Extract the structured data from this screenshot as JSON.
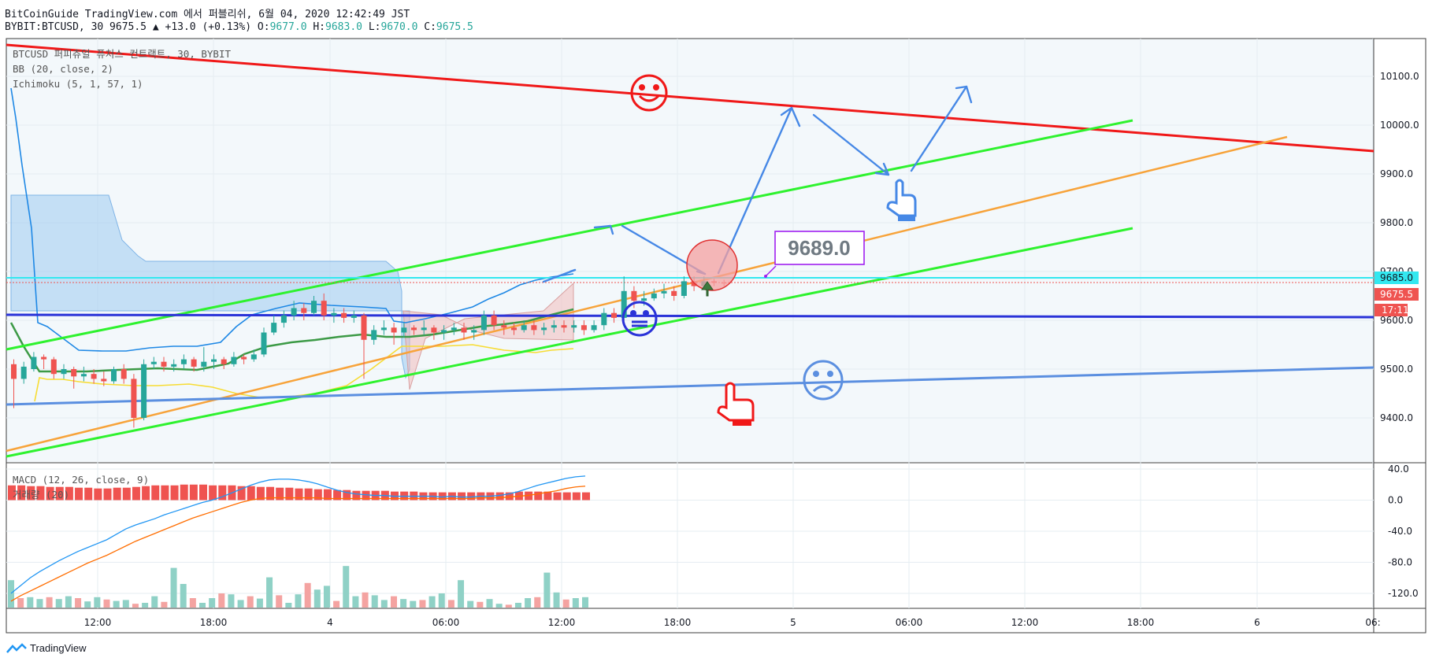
{
  "header": {
    "title": "BitCoinGuide TradingView.com 에서 퍼블리쉬, 6월 04, 2020 12:42:49 JST",
    "symbol_prefix": "BYBIT:BTCUSD, 30 9675.5",
    "change": "▲ +13.0 (+0.13%)",
    "o_label": "O:",
    "o_val": "9677.0",
    "h_label": "H:",
    "h_val": "9683.0",
    "l_label": "L:",
    "l_val": "9670.0",
    "c_label": "C:",
    "c_val": "9675.5"
  },
  "studies": {
    "main": "BTCUSD 퍼피츄얼 퓨처스 컨트랙트, 30, BYBIT",
    "bb": "BB (20, close, 2)",
    "ichimoku": "Ichimoku (5, 1, 57, 1)",
    "macd": "MACD (12, 26, close, 9)",
    "volume": "거래량 (20)"
  },
  "annotation": {
    "price_box": "9689.0"
  },
  "price_axis": {
    "ticks": [
      "10100.0",
      "10000.0",
      "9900.0",
      "9800.0",
      "9700.0",
      "9600.0",
      "9500.0",
      "9400.0"
    ],
    "badges": [
      {
        "text": "9685.0",
        "bg": "#33e8f0",
        "fg": "#131722"
      },
      {
        "text": "9675.5",
        "bg": "#ef5350",
        "fg": "#ffffff"
      },
      {
        "text": "17:11",
        "bg": "#ef5350",
        "fg": "#ffffff"
      }
    ]
  },
  "macd_axis": {
    "ticks": [
      "40.0",
      "0.0",
      "-40.0",
      "-80.0",
      "-120.0"
    ]
  },
  "time_axis": {
    "ticks": [
      "12:00",
      "18:00",
      "4",
      "06:00",
      "12:00",
      "18:00",
      "5",
      "06:00",
      "12:00",
      "18:00",
      "6",
      "06:"
    ]
  },
  "footer": {
    "logo": "TradingView"
  },
  "colors": {
    "up": "#26a69a",
    "down": "#ef5350",
    "resistance": "#f01818",
    "channel": "#2ef22e",
    "orange_trend": "#f7a33a",
    "blue_level": "#2a33d8",
    "support": "#5b8fe0",
    "arrows": "#4688e6",
    "annotation_border": "#a020f0"
  },
  "chart_data": {
    "type": "candlestick",
    "symbol": "BYBIT:BTCUSD",
    "interval": "30",
    "ylim": [
      9330,
      10170
    ],
    "last_price": 9675.5,
    "marked_price": 9689.0,
    "hline_price": 9685.0,
    "candles": [
      {
        "o": 9510,
        "c": 9480,
        "h": 9520,
        "l": 9420
      },
      {
        "o": 9480,
        "c": 9505,
        "h": 9515,
        "l": 9470
      },
      {
        "o": 9500,
        "c": 9525,
        "h": 9535,
        "l": 9495
      },
      {
        "o": 9525,
        "c": 9520,
        "h": 9530,
        "l": 9500
      },
      {
        "o": 9520,
        "c": 9490,
        "h": 9525,
        "l": 9480
      },
      {
        "o": 9490,
        "c": 9500,
        "h": 9510,
        "l": 9480
      },
      {
        "o": 9500,
        "c": 9485,
        "h": 9505,
        "l": 9460
      },
      {
        "o": 9485,
        "c": 9490,
        "h": 9505,
        "l": 9475
      },
      {
        "o": 9490,
        "c": 9480,
        "h": 9500,
        "l": 9470
      },
      {
        "o": 9480,
        "c": 9475,
        "h": 9495,
        "l": 9465
      },
      {
        "o": 9475,
        "c": 9500,
        "h": 9505,
        "l": 9470
      },
      {
        "o": 9500,
        "c": 9480,
        "h": 9510,
        "l": 9470
      },
      {
        "o": 9480,
        "c": 9400,
        "h": 9490,
        "l": 9380
      },
      {
        "o": 9400,
        "c": 9510,
        "h": 9520,
        "l": 9395
      },
      {
        "o": 9510,
        "c": 9515,
        "h": 9525,
        "l": 9500
      },
      {
        "o": 9515,
        "c": 9505,
        "h": 9525,
        "l": 9495
      },
      {
        "o": 9505,
        "c": 9510,
        "h": 9520,
        "l": 9495
      },
      {
        "o": 9510,
        "c": 9520,
        "h": 9530,
        "l": 9500
      },
      {
        "o": 9520,
        "c": 9505,
        "h": 9525,
        "l": 9495
      },
      {
        "o": 9505,
        "c": 9515,
        "h": 9545,
        "l": 9495
      },
      {
        "o": 9515,
        "c": 9520,
        "h": 9530,
        "l": 9500
      },
      {
        "o": 9520,
        "c": 9510,
        "h": 9525,
        "l": 9500
      },
      {
        "o": 9510,
        "c": 9525,
        "h": 9535,
        "l": 9505
      },
      {
        "o": 9525,
        "c": 9520,
        "h": 9530,
        "l": 9510
      },
      {
        "o": 9520,
        "c": 9530,
        "h": 9540,
        "l": 9515
      },
      {
        "o": 9530,
        "c": 9575,
        "h": 9585,
        "l": 9525
      },
      {
        "o": 9575,
        "c": 9595,
        "h": 9610,
        "l": 9570
      },
      {
        "o": 9595,
        "c": 9610,
        "h": 9620,
        "l": 9585
      },
      {
        "o": 9610,
        "c": 9625,
        "h": 9640,
        "l": 9600
      },
      {
        "o": 9625,
        "c": 9615,
        "h": 9635,
        "l": 9600
      },
      {
        "o": 9615,
        "c": 9640,
        "h": 9650,
        "l": 9610
      },
      {
        "o": 9640,
        "c": 9610,
        "h": 9655,
        "l": 9600
      },
      {
        "o": 9610,
        "c": 9615,
        "h": 9625,
        "l": 9595
      },
      {
        "o": 9615,
        "c": 9605,
        "h": 9625,
        "l": 9595
      },
      {
        "o": 9605,
        "c": 9610,
        "h": 9620,
        "l": 9595
      },
      {
        "o": 9610,
        "c": 9560,
        "h": 9615,
        "l": 9480
      },
      {
        "o": 9560,
        "c": 9580,
        "h": 9590,
        "l": 9550
      },
      {
        "o": 9580,
        "c": 9585,
        "h": 9600,
        "l": 9570
      },
      {
        "o": 9585,
        "c": 9575,
        "h": 9595,
        "l": 9550
      },
      {
        "o": 9575,
        "c": 9585,
        "h": 9595,
        "l": 9565
      },
      {
        "o": 9585,
        "c": 9580,
        "h": 9590,
        "l": 9570
      },
      {
        "o": 9580,
        "c": 9585,
        "h": 9600,
        "l": 9570
      },
      {
        "o": 9585,
        "c": 9575,
        "h": 9590,
        "l": 9560
      },
      {
        "o": 9575,
        "c": 9580,
        "h": 9590,
        "l": 9560
      },
      {
        "o": 9580,
        "c": 9585,
        "h": 9595,
        "l": 9570
      },
      {
        "o": 9585,
        "c": 9575,
        "h": 9595,
        "l": 9560
      },
      {
        "o": 9575,
        "c": 9580,
        "h": 9590,
        "l": 9560
      },
      {
        "o": 9580,
        "c": 9610,
        "h": 9620,
        "l": 9570
      },
      {
        "o": 9610,
        "c": 9590,
        "h": 9620,
        "l": 9580
      },
      {
        "o": 9590,
        "c": 9585,
        "h": 9600,
        "l": 9570
      },
      {
        "o": 9585,
        "c": 9580,
        "h": 9595,
        "l": 9570
      },
      {
        "o": 9580,
        "c": 9590,
        "h": 9600,
        "l": 9575
      },
      {
        "o": 9590,
        "c": 9580,
        "h": 9600,
        "l": 9570
      },
      {
        "o": 9580,
        "c": 9585,
        "h": 9595,
        "l": 9570
      },
      {
        "o": 9585,
        "c": 9590,
        "h": 9600,
        "l": 9575
      },
      {
        "o": 9590,
        "c": 9585,
        "h": 9600,
        "l": 9575
      },
      {
        "o": 9585,
        "c": 9590,
        "h": 9600,
        "l": 9575
      },
      {
        "o": 9590,
        "c": 9580,
        "h": 9600,
        "l": 9570
      },
      {
        "o": 9580,
        "c": 9590,
        "h": 9600,
        "l": 9575
      },
      {
        "o": 9590,
        "c": 9615,
        "h": 9625,
        "l": 9580
      },
      {
        "o": 9615,
        "c": 9605,
        "h": 9625,
        "l": 9595
      },
      {
        "o": 9605,
        "c": 9660,
        "h": 9690,
        "l": 9600
      },
      {
        "o": 9660,
        "c": 9640,
        "h": 9670,
        "l": 9625
      },
      {
        "o": 9640,
        "c": 9645,
        "h": 9660,
        "l": 9630
      },
      {
        "o": 9645,
        "c": 9655,
        "h": 9665,
        "l": 9640
      },
      {
        "o": 9655,
        "c": 9660,
        "h": 9675,
        "l": 9645
      },
      {
        "o": 9660,
        "c": 9650,
        "h": 9670,
        "l": 9640
      },
      {
        "o": 9650,
        "c": 9680,
        "h": 9690,
        "l": 9645
      },
      {
        "o": 9680,
        "c": 9670,
        "h": 9690,
        "l": 9660
      },
      {
        "o": 9670,
        "c": 9680,
        "h": 9690,
        "l": 9665
      },
      {
        "o": 9680,
        "c": 9677,
        "h": 9685,
        "l": 9670
      },
      {
        "o": 9677,
        "c": 9675.5,
        "h": 9683,
        "l": 9670
      }
    ],
    "macd_ylim": [
      -135,
      45
    ],
    "macd_line": [
      -120,
      -110,
      -100,
      -92,
      -85,
      -78,
      -72,
      -66,
      -61,
      -56,
      -51,
      -44,
      -37,
      -32,
      -28,
      -24,
      -19,
      -15,
      -11,
      -7,
      -3,
      0,
      4,
      9,
      14,
      19,
      23,
      26,
      27,
      27,
      26,
      24,
      21,
      17,
      13,
      10,
      8,
      7,
      6,
      6,
      5,
      5,
      5,
      5,
      5,
      4,
      5,
      4,
      4,
      5,
      5,
      6,
      8,
      11,
      15,
      19,
      22,
      25,
      28,
      30,
      31
    ],
    "signal_line": [
      -130,
      -123,
      -117,
      -111,
      -105,
      -99,
      -93,
      -87,
      -81,
      -76,
      -71,
      -65,
      -59,
      -53,
      -48,
      -43,
      -38,
      -33,
      -28,
      -23,
      -19,
      -15,
      -11,
      -7,
      -3,
      0,
      2,
      3,
      3,
      3,
      3,
      3,
      3,
      2,
      2,
      2,
      2,
      2,
      2,
      2,
      2,
      2,
      2,
      2,
      2,
      2,
      2,
      2,
      2,
      3,
      3,
      3,
      4,
      5,
      6,
      8,
      10,
      12,
      15,
      17,
      18
    ],
    "macd_hist": [
      19,
      19,
      18,
      18,
      17,
      17,
      17,
      16,
      16,
      15,
      15,
      16,
      16,
      17,
      18,
      19,
      19,
      19,
      20,
      20,
      20,
      19,
      19,
      19,
      18,
      18,
      17,
      17,
      16,
      16,
      15,
      15,
      14,
      14,
      13,
      13,
      12,
      12,
      12,
      12,
      11,
      11,
      11,
      10,
      10,
      10,
      10,
      10,
      10,
      10,
      10,
      10,
      10,
      11,
      11,
      11,
      11,
      10,
      10,
      10,
      10
    ],
    "volume": [
      0.58,
      0.2,
      0.22,
      0.18,
      0.22,
      0.18,
      0.24,
      0.2,
      0.13,
      0.22,
      0.17,
      0.14,
      0.16,
      0.08,
      0.1,
      0.24,
      0.12,
      0.84,
      0.5,
      0.2,
      0.1,
      0.2,
      0.3,
      0.28,
      0.16,
      0.24,
      0.19,
      0.64,
      0.26,
      0.1,
      0.28,
      0.52,
      0.38,
      0.46,
      0.14,
      0.88,
      0.24,
      0.32,
      0.26,
      0.16,
      0.24,
      0.18,
      0.14,
      0.16,
      0.24,
      0.3,
      0.16,
      0.58,
      0.14,
      0.12,
      0.18,
      0.08,
      0.06,
      0.1,
      0.2,
      0.22,
      0.74,
      0.32,
      0.17,
      0.2,
      0.22
    ]
  }
}
